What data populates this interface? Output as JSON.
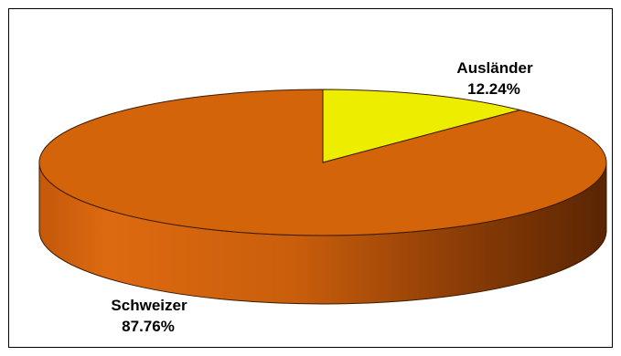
{
  "chart_data": {
    "type": "pie",
    "style": "3d",
    "slices": [
      {
        "label": "Schweizer",
        "value": 87.76,
        "value_text": "87.76%",
        "color": "#d4640a",
        "side_color": "#b55208"
      },
      {
        "label": "Ausländer",
        "value": 12.24,
        "value_text": "12.24%",
        "color": "#eded00",
        "side_color": "#c8c800"
      }
    ],
    "legend": "none",
    "labels": "outside"
  }
}
